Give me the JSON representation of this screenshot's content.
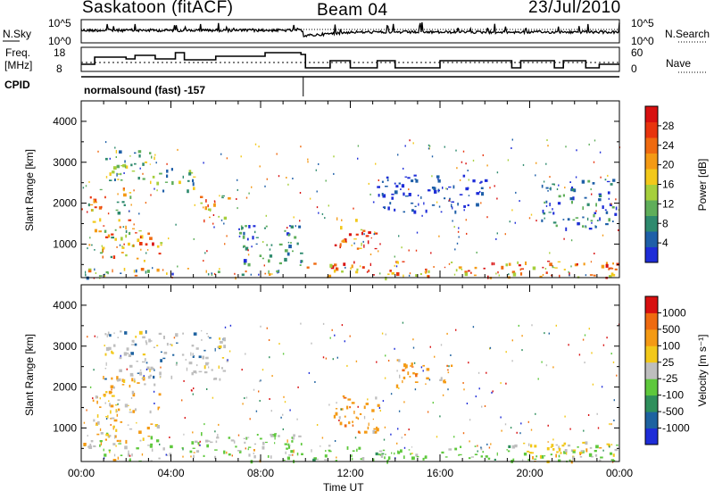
{
  "header": {
    "station": "Saskatoon (fitACF)",
    "beam": "Beam 04",
    "date": "23/Jul/2010"
  },
  "summary": {
    "nsky_label_1": "N.Sky",
    "nsky_ticks": [
      "10^5",
      "10^0"
    ],
    "nsearch_label": "N.Search",
    "nsearch_ticks": [
      "10^5",
      "10^0"
    ],
    "freq_label_1": "Freq.",
    "freq_label_2": "[MHz]",
    "freq_ticks": [
      "18",
      "8"
    ],
    "nave_label": "Nave",
    "nave_ticks": [
      "60",
      "0"
    ],
    "cpid_label": "CPID",
    "cpid_value": "normalsound (fast) -157"
  },
  "chart_data": [
    {
      "type": "heatmap",
      "name": "power-panel",
      "ylabel": "Slant Range [km]",
      "xlabel": "",
      "y_ticks": [
        "1000",
        "2000",
        "3000",
        "4000"
      ],
      "ylim": [
        180,
        4500
      ],
      "xlim_hours": [
        0,
        24
      ],
      "colorbar": {
        "label": "Power [dB]",
        "ticks": [
          "4",
          "8",
          "12",
          "16",
          "20",
          "24",
          "28"
        ],
        "colors": [
          "#1e2dd8",
          "#1e5fa8",
          "#2e8a6e",
          "#5fae5a",
          "#a6cf3c",
          "#f2c81a",
          "#f49a14",
          "#ef6a10",
          "#e8340e",
          "#d81010"
        ]
      },
      "echo_regions": [
        {
          "t0": 0.0,
          "t1": 9.8,
          "r0": 200,
          "r1": 420,
          "level": "mixed"
        },
        {
          "t0": 0.3,
          "t1": 2.2,
          "r0": 700,
          "r1": 2400,
          "level": "mid-high"
        },
        {
          "t0": 2.2,
          "t1": 3.6,
          "r0": 600,
          "r1": 1400,
          "level": "high"
        },
        {
          "t0": 1.0,
          "t1": 3.5,
          "r0": 2500,
          "r1": 3400,
          "level": "mid"
        },
        {
          "t0": 3.6,
          "t1": 5.2,
          "r0": 2300,
          "r1": 2900,
          "level": "mid"
        },
        {
          "t0": 5.2,
          "t1": 6.6,
          "r0": 1600,
          "r1": 2200,
          "level": "mid-high"
        },
        {
          "t0": 7.0,
          "t1": 9.8,
          "r0": 500,
          "r1": 1500,
          "level": "low-mid"
        },
        {
          "t0": 10.0,
          "t1": 24.0,
          "r0": 200,
          "r1": 600,
          "level": "high"
        },
        {
          "t0": 11.2,
          "t1": 13.2,
          "r0": 900,
          "r1": 1700,
          "level": "high"
        },
        {
          "t0": 13.0,
          "t1": 18.0,
          "r0": 1800,
          "r1": 2700,
          "level": "low"
        },
        {
          "t0": 20.5,
          "t1": 24.0,
          "r0": 1400,
          "r1": 2600,
          "level": "low-mid"
        }
      ]
    },
    {
      "type": "heatmap",
      "name": "velocity-panel",
      "ylabel": "Slant Range [km]",
      "xlabel": "Time UT",
      "x_ticks": [
        "00:00",
        "04:00",
        "08:00",
        "12:00",
        "16:00",
        "20:00",
        "00:00"
      ],
      "y_ticks": [
        "1000",
        "2000",
        "3000",
        "4000"
      ],
      "ylim": [
        180,
        4500
      ],
      "xlim_hours": [
        0,
        24
      ],
      "colorbar": {
        "label": "Velocity [m s⁻¹]",
        "ticks": [
          "1000",
          "500",
          "100",
          "25",
          "-25",
          "-100",
          "-500",
          "-1000"
        ],
        "colors": [
          "#1e2dd8",
          "#1e62a0",
          "#2f8f5c",
          "#5ec83c",
          "#bebebe",
          "#f2c81a",
          "#f49a14",
          "#ef6a10",
          "#d81010"
        ]
      },
      "echo_regions": [
        {
          "t0": 0.0,
          "t1": 9.8,
          "r0": 200,
          "r1": 900,
          "level": "green-grey"
        },
        {
          "t0": 0.5,
          "t1": 3.5,
          "r0": 700,
          "r1": 2300,
          "level": "orange-grey"
        },
        {
          "t0": 1.0,
          "t1": 6.5,
          "r0": 2200,
          "r1": 3400,
          "level": "grey"
        },
        {
          "t0": 10.0,
          "t1": 24.0,
          "r0": 200,
          "r1": 600,
          "level": "green"
        },
        {
          "t0": 11.2,
          "t1": 13.5,
          "r0": 900,
          "r1": 1800,
          "level": "orange"
        },
        {
          "t0": 14.0,
          "t1": 16.5,
          "r0": 2000,
          "r1": 2700,
          "level": "orange"
        },
        {
          "t0": 19.0,
          "t1": 24.0,
          "r0": 200,
          "r1": 700,
          "level": "yellow"
        }
      ]
    }
  ]
}
